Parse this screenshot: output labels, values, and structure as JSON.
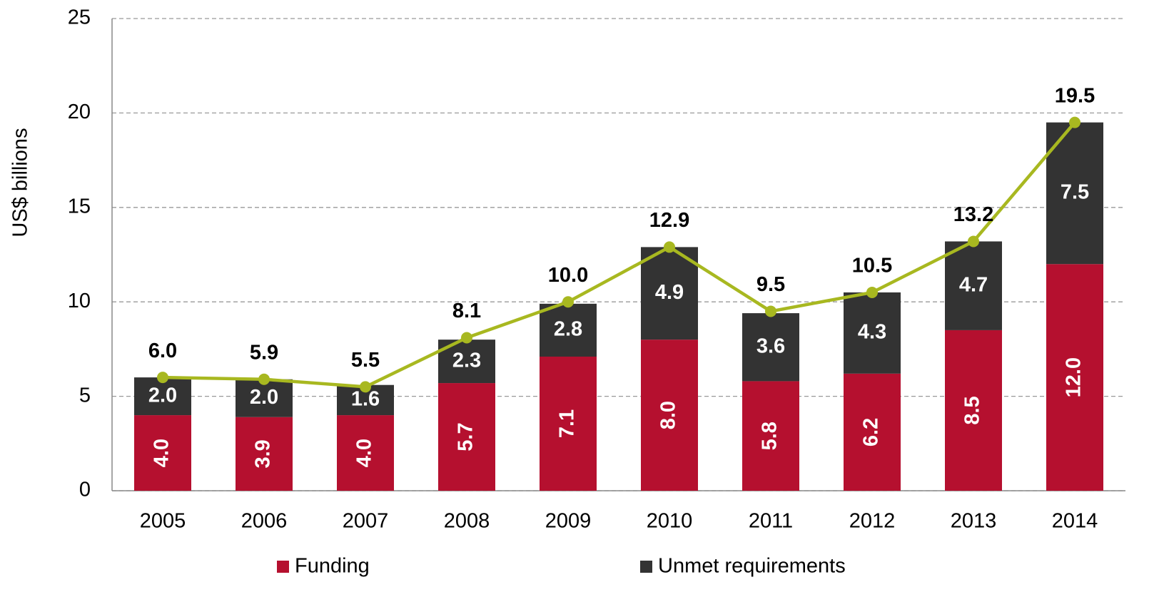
{
  "chart_data": {
    "type": "bar",
    "stacked": true,
    "y_label": "US$ billions",
    "categories": [
      "2005",
      "2006",
      "2007",
      "2008",
      "2009",
      "2010",
      "2011",
      "2012",
      "2013",
      "2014"
    ],
    "series": [
      {
        "name": "Funding",
        "color": "#b5102f",
        "values": [
          4.0,
          3.9,
          4.0,
          5.7,
          7.1,
          8.0,
          5.8,
          6.2,
          8.5,
          12.0
        ],
        "value_labels": [
          "4.0",
          "3.9",
          "4.0",
          "5.7",
          "7.1",
          "8.0",
          "5.8",
          "6.2",
          "8.5",
          "12.0"
        ]
      },
      {
        "name": "Unmet requirements",
        "color": "#333333",
        "values": [
          2.0,
          2.0,
          1.6,
          2.3,
          2.8,
          4.9,
          3.6,
          4.3,
          4.7,
          7.5
        ],
        "value_labels": [
          "2.0",
          "2.0",
          "1.6",
          "2.3",
          "2.8",
          "4.9",
          "3.6",
          "4.3",
          "4.7",
          "7.5"
        ]
      }
    ],
    "line": {
      "color": "#a8b820",
      "values": [
        6.0,
        5.9,
        5.5,
        8.1,
        10.0,
        12.9,
        9.5,
        10.5,
        13.2,
        19.5
      ],
      "value_labels": [
        "6.0",
        "5.9",
        "5.5",
        "8.1",
        "10.0",
        "12.9",
        "9.5",
        "10.5",
        "13.2",
        "19.5"
      ]
    },
    "ylim": [
      0,
      25
    ],
    "yticks": [
      0,
      5,
      10,
      15,
      20,
      25
    ],
    "grid": true
  }
}
